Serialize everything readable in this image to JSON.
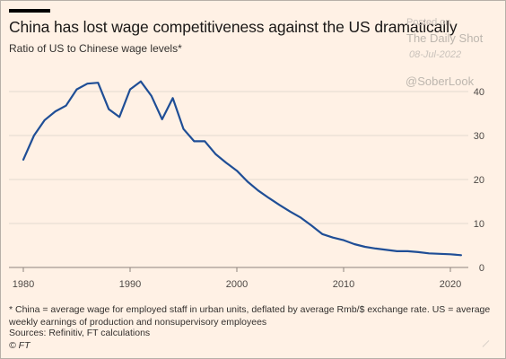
{
  "header": {
    "title": "China has lost wage competitiveness against the US dramatically",
    "subtitle": "Ratio of US to Chinese wage levels*"
  },
  "watermark": {
    "posted": "Posted on",
    "name": "The Daily Shot",
    "date": "08-Jul-2022",
    "handle": "@SoberLook"
  },
  "footer": {
    "note": "* China = average wage for employed staff in urban units, deflated by average Rmb/$ exchange rate. US = average weekly earnings of production and nonsupervisory employees",
    "sources": "Sources: Refinitiv, FT calculations",
    "copyright": "© FT"
  },
  "colors": {
    "background": "#fff1e5",
    "line": "#1f4e96",
    "grid": "#e3d9cf"
  },
  "chart_data": {
    "type": "line",
    "title": "China has lost wage competitiveness against the US dramatically",
    "subtitle": "Ratio of US to Chinese wage levels*",
    "xlabel": "",
    "ylabel": "",
    "xlim": [
      1979.5,
      2022
    ],
    "ylim": [
      0,
      45
    ],
    "grid": true,
    "y_axis_side": "right",
    "x_ticks": [
      1980,
      1990,
      2000,
      2010,
      2020
    ],
    "y_ticks": [
      0,
      10,
      20,
      30,
      40
    ],
    "series": [
      {
        "x": [
          1980,
          1981,
          1982,
          1983,
          1984,
          1985,
          1986,
          1987,
          1988,
          1989,
          1990,
          1991,
          1992,
          1993,
          1994,
          1995,
          1996,
          1997,
          1998,
          1999,
          2000,
          2001,
          2002,
          2003,
          2004,
          2005,
          2006,
          2007,
          2008,
          2009,
          2010,
          2011,
          2012,
          2013,
          2014,
          2015,
          2016,
          2017,
          2018,
          2019,
          2020,
          2021
        ],
        "values": [
          24.5,
          30,
          33.5,
          35.5,
          36.8,
          40.5,
          41.8,
          42,
          36,
          34.2,
          40.5,
          42.3,
          39,
          33.7,
          38.5,
          31.5,
          28.7,
          28.7,
          25.8,
          23.8,
          22,
          19.5,
          17.5,
          15.8,
          14.2,
          12.7,
          11.3,
          9.5,
          7.6,
          6.8,
          6.2,
          5.3,
          4.7,
          4.3,
          4.0,
          3.7,
          3.7,
          3.5,
          3.2,
          3.1,
          3.0,
          2.8
        ]
      }
    ]
  }
}
